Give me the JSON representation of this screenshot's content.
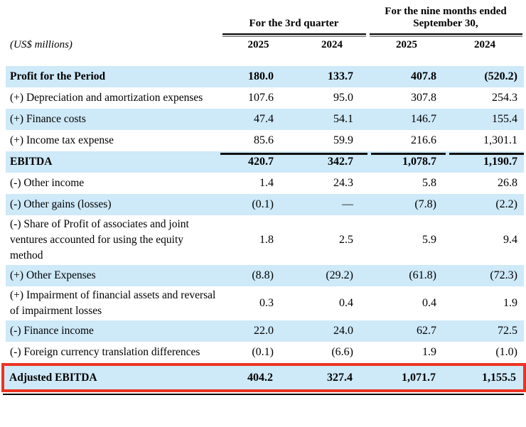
{
  "unit_label": "(US$ millions)",
  "header": {
    "group1": "For the 3rd quarter",
    "group2_line1": "For the nine months ended",
    "group2_line2": "September 30,",
    "years": [
      "2025",
      "2024",
      "2025",
      "2024"
    ]
  },
  "colors": {
    "row_highlight": "#cee9f8",
    "annotation_border": "#ec3323"
  },
  "rows": [
    {
      "label": "Profit for the Period",
      "bold": true,
      "shaded": true,
      "values": [
        "180.0",
        "133.7",
        "407.8",
        "(520.2)"
      ]
    },
    {
      "label": "(+) Depreciation and amortization expenses",
      "bold": false,
      "shaded": false,
      "values": [
        "107.6",
        "95.0",
        "307.8",
        "254.3"
      ]
    },
    {
      "label": "(+) Finance costs",
      "bold": false,
      "shaded": true,
      "values": [
        "47.4",
        "54.1",
        "146.7",
        "155.4"
      ]
    },
    {
      "label": "(+) Income tax expense",
      "bold": false,
      "shaded": false,
      "values": [
        "85.6",
        "59.9",
        "216.6",
        "1,301.1"
      ]
    },
    {
      "label": "EBITDA",
      "bold": true,
      "shaded": true,
      "topline": true,
      "values": [
        "420.7",
        "342.7",
        "1,078.7",
        "1,190.7"
      ]
    },
    {
      "label": "(-) Other income",
      "bold": false,
      "shaded": false,
      "values": [
        "1.4",
        "24.3",
        "5.8",
        "26.8"
      ]
    },
    {
      "label": "(-) Other gains (losses)",
      "bold": false,
      "shaded": true,
      "values": [
        "(0.1)",
        "—",
        "(7.8)",
        "(2.2)"
      ]
    },
    {
      "label": "(-) Share of Profit of associates and joint ventures accounted for using the equity method",
      "bold": false,
      "shaded": false,
      "values": [
        "1.8",
        "2.5",
        "5.9",
        "9.4"
      ]
    },
    {
      "label": "(+) Other Expenses",
      "bold": false,
      "shaded": true,
      "values": [
        "(8.8)",
        "(29.2)",
        "(61.8)",
        "(72.3)"
      ]
    },
    {
      "label": "(+) Impairment of financial assets and reversal of impairment losses",
      "bold": false,
      "shaded": false,
      "values": [
        "0.3",
        "0.4",
        "0.4",
        "1.9"
      ]
    },
    {
      "label": "(-) Finance income",
      "bold": false,
      "shaded": true,
      "values": [
        "22.0",
        "24.0",
        "62.7",
        "72.5"
      ]
    },
    {
      "label": "(-) Foreign currency translation differences",
      "bold": false,
      "shaded": false,
      "values": [
        "(0.1)",
        "(6.6)",
        "1.9",
        "(1.0)"
      ]
    },
    {
      "label": "Adjusted EBITDA",
      "bold": true,
      "shaded": true,
      "highlighted": true,
      "values": [
        "404.2",
        "327.4",
        "1,071.7",
        "1,155.5"
      ]
    }
  ]
}
